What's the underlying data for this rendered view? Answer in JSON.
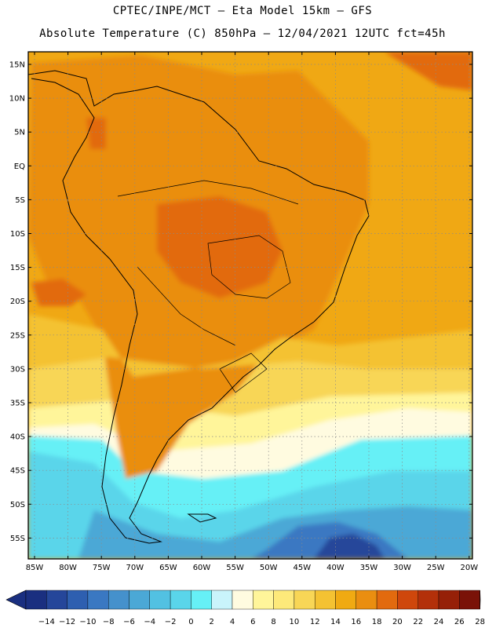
{
  "header": {
    "line1": "CPTEC/INPE/MCT –  Eta Model 15km – GFS",
    "line2": "Absolute Temperature (C) 850hPa – 12/04/2021 12UTC fct=45h"
  },
  "latitude_labels": [
    "15N",
    "10N",
    "5N",
    "EQ",
    "5S",
    "10S",
    "15S",
    "20S",
    "25S",
    "30S",
    "35S",
    "40S",
    "45S",
    "50S",
    "55S"
  ],
  "longitude_labels": [
    "85W",
    "80W",
    "75W",
    "70W",
    "65W",
    "60W",
    "55W",
    "50W",
    "45W",
    "40W",
    "35W",
    "30W",
    "25W",
    "20W"
  ],
  "legend": {
    "labels": [
      "-14",
      "-12",
      "-10",
      "-8",
      "-6",
      "-4",
      "-2",
      "0",
      "2",
      "4",
      "6",
      "8",
      "10",
      "12",
      "14",
      "16",
      "18",
      "20",
      "22",
      "24",
      "26",
      "28"
    ],
    "colors": [
      "#1a2f80",
      "#25469a",
      "#2e5fb0",
      "#3a78c2",
      "#4591cc",
      "#4ba8d6",
      "#52c1e2",
      "#5ad5ea",
      "#66f0f6",
      "#c9f4fb",
      "#fffbe0",
      "#fff59a",
      "#fde97a",
      "#f8d656",
      "#f4c232",
      "#f0aa12",
      "#ea8e10",
      "#e26a0e",
      "#cf470c",
      "#b3300a",
      "#962008",
      "#7a1208"
    ],
    "left_arrow": "#1a2f80",
    "right_arrow": "#6a0a28"
  },
  "field_colors": {
    "ocean_warm": "#f0a814",
    "land_warm": "#ea8e10",
    "hot_core": "#e26a0e",
    "mid": "#f4c232",
    "cooler": "#f8d656",
    "cool": "#fde97a",
    "pale": "#fff59a",
    "cream": "#fffbe0",
    "zero_four": "#66f0f6",
    "cyan": "#5ad5ea",
    "blue_mid": "#4ba8d6",
    "blue_deep": "#3a78c2",
    "navy": "#25469a"
  }
}
